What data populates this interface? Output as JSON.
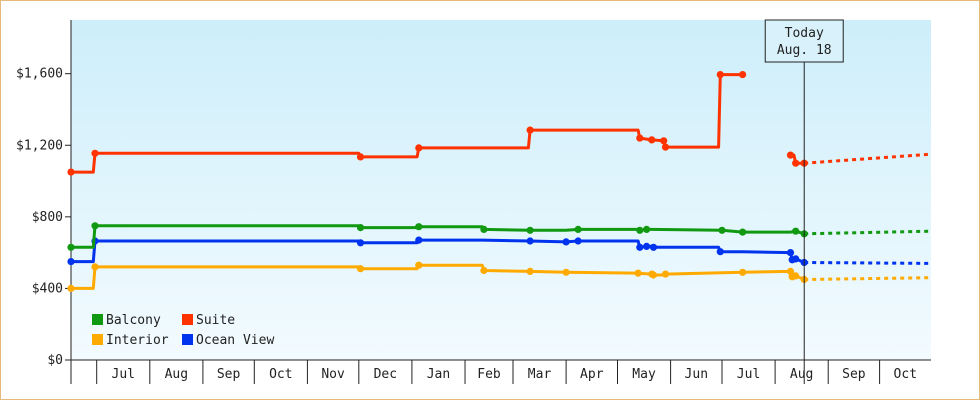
{
  "chart_data": {
    "type": "line",
    "title": "",
    "xlabel": "",
    "ylabel": "",
    "ylim": [
      0,
      1900
    ],
    "y_ticks": [
      0,
      400,
      800,
      1200,
      1600
    ],
    "y_tick_labels": [
      "$0",
      "$400",
      "$800",
      "$1,200",
      "$1,600"
    ],
    "months": [
      "Jul",
      "Aug",
      "Sep",
      "Oct",
      "Nov",
      "Dec",
      "Jan",
      "Feb",
      "Mar",
      "Apr",
      "May",
      "Jun",
      "Jul",
      "Aug",
      "Sep",
      "Oct"
    ],
    "x_range": [
      "2022-06-16",
      "2023-10-31"
    ],
    "today": {
      "line1": "Today",
      "line2": "Aug. 18",
      "date": "2023-08-18"
    },
    "legend": {
      "placement": "bottom-left"
    },
    "series": [
      {
        "name": "Balcony",
        "color": "#119911",
        "points": [
          [
            "2022-06-16",
            630
          ],
          [
            "2022-06-29",
            630
          ],
          [
            "2022-06-30",
            750
          ],
          [
            "2022-12-01",
            750
          ],
          [
            "2022-12-02",
            740
          ],
          [
            "2023-01-04",
            740
          ],
          [
            "2023-01-05",
            745
          ],
          [
            "2023-02-11",
            745
          ],
          [
            "2023-02-12",
            730
          ],
          [
            "2023-03-11",
            725
          ],
          [
            "2023-04-01",
            725
          ],
          [
            "2023-04-08",
            730
          ],
          [
            "2023-05-13",
            730
          ],
          [
            "2023-05-14",
            725
          ],
          [
            "2023-05-18",
            730
          ],
          [
            "2023-05-21",
            730
          ],
          [
            "2023-07-01",
            725
          ],
          [
            "2023-07-13",
            715
          ],
          [
            "2023-08-10",
            715
          ],
          [
            "2023-08-13",
            720
          ],
          [
            "2023-08-18",
            705
          ]
        ],
        "forecast": [
          [
            "2023-08-18",
            705
          ],
          [
            "2023-10-31",
            720
          ]
        ]
      },
      {
        "name": "Suite",
        "color": "#ff3300",
        "points": [
          [
            "2022-06-16",
            1050
          ],
          [
            "2022-06-29",
            1050
          ],
          [
            "2022-06-30",
            1155
          ],
          [
            "2022-12-01",
            1155
          ],
          [
            "2022-12-02",
            1135
          ],
          [
            "2023-01-04",
            1135
          ],
          [
            "2023-01-05",
            1185
          ],
          [
            "2023-03-10",
            1185
          ],
          [
            "2023-03-11",
            1285
          ],
          [
            "2023-04-01",
            1285
          ],
          [
            "2023-04-08",
            1285
          ],
          [
            "2023-05-13",
            1285
          ],
          [
            "2023-05-14",
            1240
          ],
          [
            "2023-05-21",
            1230
          ],
          [
            "2023-05-28",
            1225
          ],
          [
            "2023-05-29",
            1190
          ],
          [
            "2023-06-29",
            1190
          ],
          [
            "2023-06-30",
            1595
          ],
          [
            "2023-07-13",
            1595
          ]
        ],
        "points_after_gap": [
          [
            "2023-08-10",
            1145
          ],
          [
            "2023-08-12",
            1145
          ],
          [
            "2023-08-13",
            1100
          ],
          [
            "2023-08-18",
            1100
          ]
        ],
        "forecast": [
          [
            "2023-08-18",
            1100
          ],
          [
            "2023-10-31",
            1150
          ]
        ]
      },
      {
        "name": "Interior",
        "color": "#ffaa00",
        "points": [
          [
            "2022-06-16",
            400
          ],
          [
            "2022-06-29",
            400
          ],
          [
            "2022-06-30",
            520
          ],
          [
            "2022-12-01",
            520
          ],
          [
            "2022-12-02",
            510
          ],
          [
            "2023-01-04",
            510
          ],
          [
            "2023-01-05",
            530
          ],
          [
            "2023-02-11",
            530
          ],
          [
            "2023-02-12",
            500
          ],
          [
            "2023-03-11",
            495
          ],
          [
            "2023-04-01",
            490
          ],
          [
            "2023-05-13",
            485
          ],
          [
            "2023-05-21",
            480
          ],
          [
            "2023-05-22",
            475
          ],
          [
            "2023-05-28",
            475
          ],
          [
            "2023-05-29",
            480
          ],
          [
            "2023-07-13",
            490
          ],
          [
            "2023-08-10",
            495
          ],
          [
            "2023-08-11",
            465
          ],
          [
            "2023-08-13",
            470
          ],
          [
            "2023-08-18",
            450
          ]
        ],
        "forecast": [
          [
            "2023-08-18",
            450
          ],
          [
            "2023-10-31",
            460
          ]
        ]
      },
      {
        "name": "Ocean View",
        "color": "#0033ee",
        "points": [
          [
            "2022-06-16",
            550
          ],
          [
            "2022-06-29",
            550
          ],
          [
            "2022-06-30",
            665
          ],
          [
            "2022-12-01",
            665
          ],
          [
            "2022-12-02",
            655
          ],
          [
            "2023-01-04",
            655
          ],
          [
            "2023-01-05",
            670
          ],
          [
            "2023-02-11",
            670
          ],
          [
            "2023-03-11",
            665
          ],
          [
            "2023-04-01",
            660
          ],
          [
            "2023-04-08",
            665
          ],
          [
            "2023-05-13",
            665
          ],
          [
            "2023-05-14",
            630
          ],
          [
            "2023-05-18",
            635
          ],
          [
            "2023-05-21",
            635
          ],
          [
            "2023-05-22",
            630
          ],
          [
            "2023-06-29",
            630
          ],
          [
            "2023-06-30",
            605
          ],
          [
            "2023-07-13",
            605
          ],
          [
            "2023-08-10",
            600
          ],
          [
            "2023-08-11",
            560
          ],
          [
            "2023-08-13",
            565
          ],
          [
            "2023-08-18",
            545
          ]
        ],
        "forecast": [
          [
            "2023-08-18",
            545
          ],
          [
            "2023-10-31",
            540
          ]
        ]
      }
    ]
  }
}
